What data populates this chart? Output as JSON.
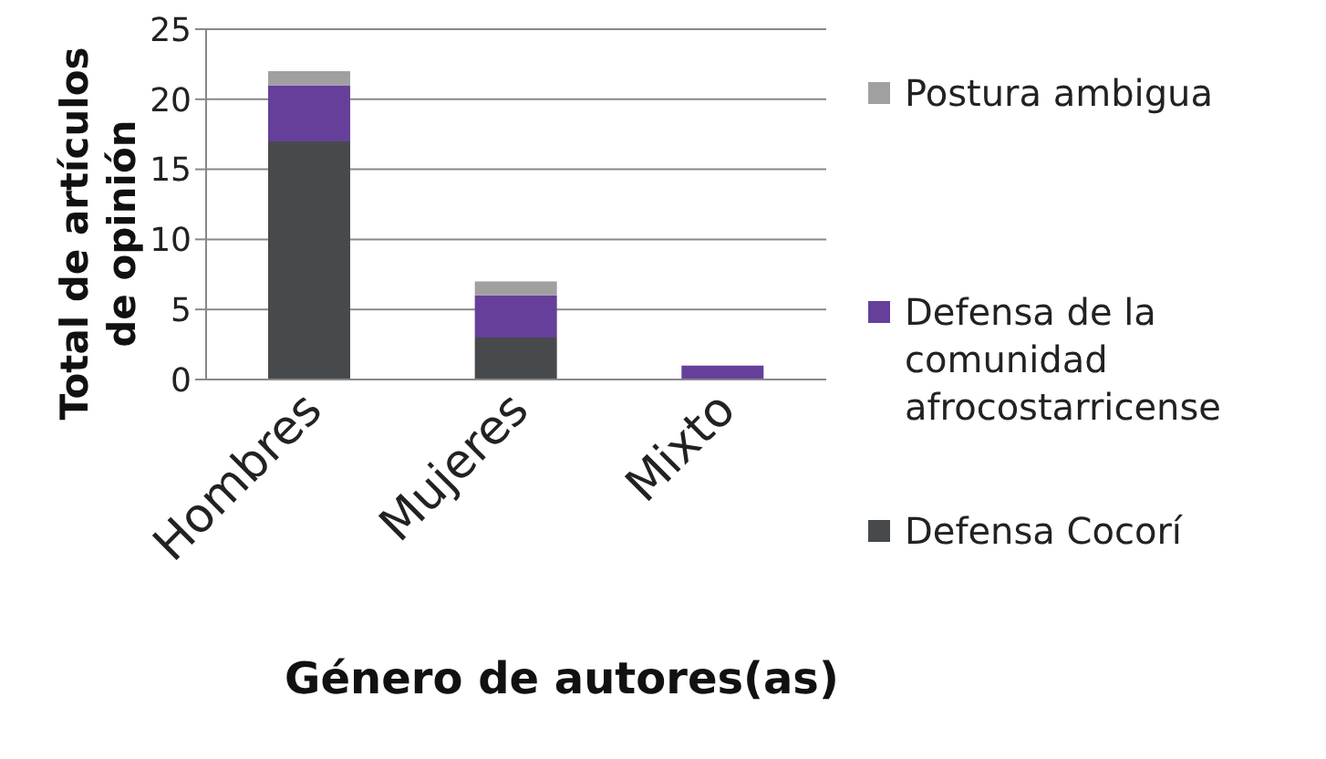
{
  "chart_data": {
    "type": "bar",
    "stacked": true,
    "xlabel": "Género de autores(as)",
    "ylabel": "Total de artículos de opinión",
    "categories": [
      "Hombres",
      "Mujeres",
      "Mixto"
    ],
    "series": [
      {
        "name": "Defensa Cocorí",
        "color": "#474a4d",
        "values": [
          17,
          3,
          0
        ]
      },
      {
        "name": "Defensa de la comunidad afrocostarricense",
        "color": "#663f9a",
        "values": [
          4,
          3,
          1
        ]
      },
      {
        "name": "Postura ambigua",
        "color": "#a0a0a0",
        "values": [
          1,
          1,
          0
        ]
      }
    ],
    "ylim": [
      0,
      25
    ],
    "yticks": [
      0,
      5,
      10,
      15,
      20,
      25
    ],
    "grid": "y",
    "legend": "right"
  }
}
